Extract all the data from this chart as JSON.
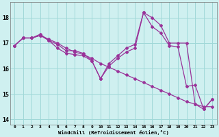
{
  "xlabel": "Windchill (Refroidissement éolien,°C)",
  "background_color": "#cff0f0",
  "grid_color": "#a0d8d8",
  "line_color": "#993399",
  "hours": [
    0,
    1,
    2,
    3,
    4,
    5,
    6,
    7,
    8,
    9,
    10,
    11,
    12,
    13,
    14,
    15,
    16,
    17,
    18,
    19,
    20,
    21,
    22,
    23
  ],
  "series1": [
    16.9,
    17.2,
    17.2,
    17.3,
    17.15,
    17.0,
    16.8,
    16.65,
    16.55,
    16.4,
    16.2,
    16.05,
    15.9,
    15.75,
    15.6,
    15.45,
    15.3,
    15.15,
    15.0,
    14.85,
    14.7,
    14.6,
    14.5,
    14.5
  ],
  "series2": [
    16.9,
    17.2,
    17.2,
    17.35,
    17.1,
    16.8,
    16.6,
    16.55,
    16.5,
    16.3,
    15.6,
    16.1,
    16.4,
    16.65,
    16.8,
    18.2,
    17.65,
    17.4,
    16.9,
    16.85,
    15.3,
    15.35,
    14.4,
    14.8
  ],
  "series3": [
    16.9,
    17.2,
    17.2,
    17.3,
    17.1,
    16.95,
    16.7,
    16.7,
    16.6,
    16.3,
    15.6,
    16.2,
    16.5,
    16.8,
    16.95,
    18.2,
    18.0,
    17.7,
    17.0,
    17.0,
    17.0,
    14.6,
    14.4,
    14.8
  ],
  "ylim": [
    13.8,
    18.6
  ],
  "yticks": [
    14,
    15,
    16,
    17,
    18
  ],
  "xlim": [
    -0.5,
    23.5
  ],
  "marker": "D",
  "markersize": 2.0,
  "linewidth": 0.9
}
